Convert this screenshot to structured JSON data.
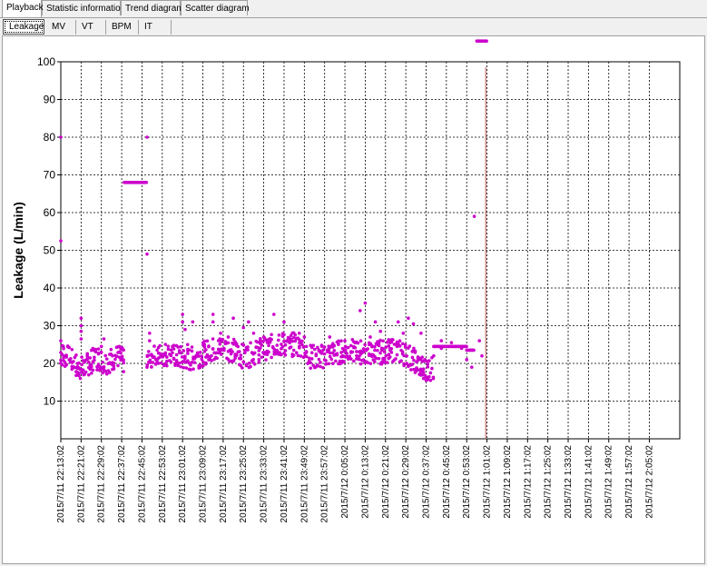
{
  "tabs": [
    {
      "label": "Playback",
      "active": true
    },
    {
      "label": "Statistic information",
      "active": false
    },
    {
      "label": "Trend diagram",
      "active": false
    },
    {
      "label": "Scatter diagram",
      "active": false
    }
  ],
  "subtabs": [
    {
      "label": "Leakage",
      "active": true
    },
    {
      "label": "MV",
      "active": false
    },
    {
      "label": "VT",
      "active": false
    },
    {
      "label": "BPM",
      "active": false
    },
    {
      "label": "IT",
      "active": false
    }
  ],
  "chart_data": {
    "type": "scatter",
    "ylabel": "Leakage (L/min)",
    "xlabel": "",
    "title": "",
    "ylim": [
      0,
      100
    ],
    "yticks": [
      10,
      20,
      30,
      40,
      50,
      60,
      70,
      80,
      90,
      100
    ],
    "grid": true,
    "marker_color": "#cc00cc",
    "marker_line_color": "#c77777",
    "x_tick_labels": [
      "2015/7/11 22:13:02",
      "2015/7/11 22:21:02",
      "2015/7/11 22:29:02",
      "2015/7/11 22:37:02",
      "2015/7/11 22:45:02",
      "2015/7/11 22:53:02",
      "2015/7/11 23:01:02",
      "2015/7/11 23:09:02",
      "2015/7/11 23:17:02",
      "2015/7/11 23:25:02",
      "2015/7/11 23:33:02",
      "2015/7/11 23:41:02",
      "2015/7/11 23:49:02",
      "2015/7/11 23:57:02",
      "2015/7/12 0:05:02",
      "2015/7/12 0:13:02",
      "2015/7/12 0:21:02",
      "2015/7/12 0:29:02",
      "2015/7/12 0:37:02",
      "2015/7/12 0:45:02",
      "2015/7/12 0:53:02",
      "2015/7/12 1:01:02",
      "2015/7/12 1:09:02",
      "2015/7/12 1:17:02",
      "2015/7/12 1:25:02",
      "2015/7/12 1:33:02",
      "2015/7/12 1:41:02",
      "2015/7/12 1:49:02",
      "2015/7/12 1:57:02",
      "2015/7/12 2:05:02"
    ],
    "x_tick_minutes": 8,
    "x_range_minutes": [
      0,
      244
    ],
    "baseline": [
      [
        0,
        22.5
      ],
      [
        3,
        21.5
      ],
      [
        6,
        19.5
      ],
      [
        9,
        18.5
      ],
      [
        11,
        20
      ],
      [
        13,
        21
      ],
      [
        15,
        21.5
      ],
      [
        17,
        20
      ],
      [
        23,
        22
      ],
      [
        26,
        19.5
      ],
      [
        29,
        18
      ],
      [
        32,
        18.5
      ],
      [
        35,
        21
      ],
      [
        38,
        22
      ],
      [
        41,
        22.5
      ],
      [
        44,
        22
      ],
      [
        47,
        21.5
      ],
      [
        50,
        21
      ],
      [
        53,
        21.5
      ],
      [
        56,
        22.5
      ],
      [
        59,
        23.5
      ],
      [
        62,
        24
      ],
      [
        65,
        24
      ],
      [
        68,
        23.5
      ],
      [
        71,
        22
      ],
      [
        74,
        22
      ],
      [
        77,
        23
      ],
      [
        80,
        24
      ],
      [
        83,
        24.5
      ],
      [
        86,
        25
      ],
      [
        89,
        25
      ],
      [
        92,
        25
      ],
      [
        95,
        24
      ],
      [
        98,
        22
      ],
      [
        101,
        21.5
      ],
      [
        104,
        22
      ],
      [
        107,
        22.5
      ],
      [
        110,
        23
      ],
      [
        113,
        23.5
      ],
      [
        116,
        23
      ],
      [
        119,
        23
      ],
      [
        122,
        22.5
      ],
      [
        125,
        23
      ],
      [
        128,
        23
      ],
      [
        131,
        23.5
      ],
      [
        134,
        23
      ],
      [
        137,
        22
      ],
      [
        140,
        20.5
      ],
      [
        143,
        18.5
      ]
    ],
    "spread": 3.2,
    "outliers": [
      [
        0,
        80
      ],
      [
        0,
        52.5
      ],
      [
        0,
        26
      ],
      [
        1,
        24.5
      ],
      [
        8,
        32
      ],
      [
        8,
        30
      ],
      [
        8,
        28.5
      ],
      [
        8,
        26.5
      ],
      [
        9,
        17
      ],
      [
        16,
        24.5
      ],
      [
        17,
        26.5
      ],
      [
        34,
        19
      ],
      [
        35,
        28
      ],
      [
        35,
        26
      ],
      [
        36,
        22
      ],
      [
        48,
        33
      ],
      [
        48,
        31
      ],
      [
        49,
        29
      ],
      [
        50,
        25
      ],
      [
        52,
        31
      ],
      [
        60,
        33
      ],
      [
        60,
        31
      ],
      [
        63,
        28
      ],
      [
        66,
        27
      ],
      [
        68,
        32
      ],
      [
        72,
        29.5
      ],
      [
        74,
        31
      ],
      [
        76,
        28
      ],
      [
        80,
        27
      ],
      [
        82,
        25.5
      ],
      [
        84,
        33
      ],
      [
        86,
        27.5
      ],
      [
        88,
        31
      ],
      [
        94,
        28
      ],
      [
        96,
        27
      ],
      [
        106,
        27
      ],
      [
        112,
        26
      ],
      [
        118,
        34
      ],
      [
        120,
        36
      ],
      [
        122,
        27
      ],
      [
        124,
        31
      ],
      [
        126,
        28.5
      ],
      [
        133,
        31
      ],
      [
        135,
        28
      ],
      [
        137,
        32
      ],
      [
        139,
        30.5
      ],
      [
        142,
        28
      ],
      [
        143,
        16
      ],
      [
        144,
        15.5
      ],
      [
        147,
        22
      ],
      [
        150,
        26
      ],
      [
        154,
        25.5
      ],
      [
        160,
        21
      ],
      [
        162,
        19
      ],
      [
        150,
        24
      ],
      [
        158,
        24
      ]
    ],
    "segments": [
      {
        "x0": 25,
        "x1": 34,
        "y": 68
      },
      {
        "x0": 147,
        "x1": 160,
        "y": 24.5
      },
      {
        "x0": 160,
        "x1": 163,
        "y": 23.5
      },
      {
        "x0": 164,
        "x1": 168,
        "y": 105.5
      }
    ],
    "extra_points": [
      [
        34,
        80
      ],
      [
        34,
        49
      ],
      [
        34,
        108
      ],
      [
        0,
        108
      ],
      [
        163,
        59
      ],
      [
        165,
        26
      ],
      [
        166,
        22
      ]
    ],
    "vline_minutes": 167.5
  }
}
